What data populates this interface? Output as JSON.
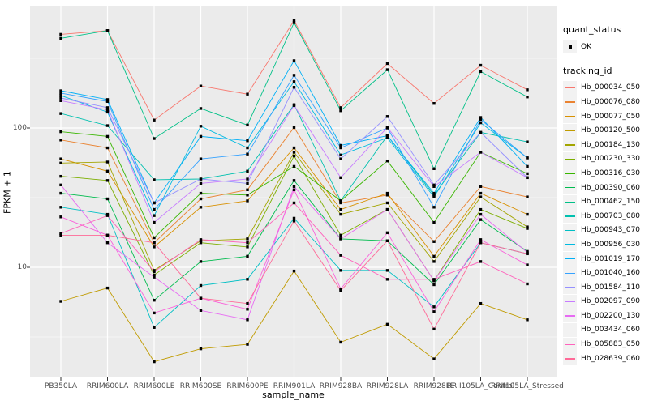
{
  "figure": {
    "y_axis": {
      "title": "FPKM + 1",
      "tick_labels": [
        "100",
        "10"
      ],
      "tick_values": [
        100,
        10
      ]
    },
    "x_axis": {
      "title": "sample_name"
    },
    "legend": {
      "quant_status_title": "quant_status",
      "quant_status_items": [
        "OK"
      ],
      "tracking_id_title": "tracking_id"
    },
    "style": {
      "panel_bg": "#EBEBEB",
      "grid_color": "#FFFFFF",
      "tick_text_color": "#4D4D4D",
      "point_color": "#000000",
      "legend_key_bg": "#F2F2F2"
    }
  },
  "chart_data": {
    "type": "line",
    "title": "",
    "xlabel": "sample_name",
    "ylabel": "FPKM + 1",
    "y_scale": "log10",
    "ylim": [
      1.7,
      750
    ],
    "y_major_ticks": [
      10,
      100
    ],
    "y_minor_gridlines": [
      3.162,
      31.62,
      316.2
    ],
    "grid": true,
    "legend_position": "right",
    "point_marker": {
      "shape": "square",
      "color": "#000000",
      "legend_label": "OK"
    },
    "categories": [
      "PB350LA",
      "RRIM600LA",
      "RRIM600LE",
      "RRIM600SE",
      "RRIM600PE",
      "RRIM901LA",
      "RRIM928BA",
      "RRIM928LA",
      "RRIM928LE",
      "RRII105LA_Control",
      "RRII105LA_Stressed"
    ],
    "series": [
      {
        "name": "Hb_000034_050",
        "color": "#F8766D",
        "values": [
          470,
          500,
          114,
          200,
          175,
          590,
          140,
          290,
          150,
          282,
          188
        ]
      },
      {
        "name": "Hb_000076_080",
        "color": "#EA8331",
        "values": [
          82,
          72,
          15,
          31,
          36,
          101,
          29,
          33,
          15.3,
          38,
          32
        ]
      },
      {
        "name": "Hb_000077_050",
        "color": "#D89000",
        "values": [
          60,
          49,
          14,
          27,
          30,
          72,
          26,
          34,
          12,
          34,
          24
        ]
      },
      {
        "name": "Hb_000120_500",
        "color": "#C09B00",
        "values": [
          5.7,
          7.1,
          2.1,
          2.6,
          2.8,
          9.4,
          2.9,
          3.9,
          2.2,
          5.5,
          4.2
        ]
      },
      {
        "name": "Hb_000184_130",
        "color": "#A3A500",
        "values": [
          56,
          57,
          9.5,
          15.5,
          16,
          67,
          24,
          29,
          11,
          32,
          19.5
        ]
      },
      {
        "name": "Hb_000230_330",
        "color": "#7CAE00",
        "values": [
          45,
          42,
          8.8,
          15,
          14,
          63,
          17,
          26,
          8,
          26,
          19
        ]
      },
      {
        "name": "Hb_000316_030",
        "color": "#39B600",
        "values": [
          94,
          87,
          16.3,
          34,
          33,
          53,
          30,
          58,
          21,
          67,
          47
        ]
      },
      {
        "name": "Hb_000390_060",
        "color": "#00BB4E",
        "values": [
          34,
          31,
          5.8,
          11,
          12,
          42,
          16,
          15.5,
          7.5,
          22,
          13
        ]
      },
      {
        "name": "Hb_000462_150",
        "color": "#00C087",
        "values": [
          440,
          500,
          84,
          138,
          105,
          570,
          133,
          262,
          51,
          254,
          167
        ]
      },
      {
        "name": "Hb_000703_080",
        "color": "#00C0AF",
        "values": [
          127,
          104,
          42.5,
          43,
          49,
          147,
          30,
          88,
          33,
          93,
          79.5
        ]
      },
      {
        "name": "Hb_000943_070",
        "color": "#00BFC4",
        "values": [
          27,
          24,
          3.7,
          7.4,
          8.2,
          22.5,
          9.5,
          9.5,
          5.2,
          15,
          12.5
        ]
      },
      {
        "name": "Hb_000956_030",
        "color": "#00BAE0",
        "values": [
          171,
          130,
          23.5,
          103,
          72,
          215,
          64,
          85,
          32,
          109,
          61
        ]
      },
      {
        "name": "Hb_001019_170",
        "color": "#00B0F6",
        "values": [
          185,
          160,
          29,
          87,
          81,
          304,
          75,
          88,
          34,
          119,
          53
        ]
      },
      {
        "name": "Hb_001040_160",
        "color": "#35A2FF",
        "values": [
          178,
          155,
          26,
          60,
          65,
          239,
          72,
          100,
          27,
          115,
          61
        ]
      },
      {
        "name": "Hb_001584_110",
        "color": "#9590FF",
        "values": [
          164,
          140,
          29,
          43,
          40,
          196,
          60,
          121,
          39,
          93,
          44
        ]
      },
      {
        "name": "Hb_002097_090",
        "color": "#C77CFF",
        "values": [
          157,
          135,
          21,
          40,
          43,
          145,
          44,
          101,
          38,
          67,
          44
        ]
      },
      {
        "name": "Hb_002200_130",
        "color": "#E76BF3",
        "values": [
          39,
          15,
          8.5,
          4.9,
          4.2,
          38,
          16,
          26,
          8,
          24,
          12.8
        ]
      },
      {
        "name": "Hb_003434_060",
        "color": "#FA62DB",
        "values": [
          23,
          17,
          4.7,
          6,
          5,
          36,
          7,
          17.7,
          4.8,
          15.8,
          10.4
        ]
      },
      {
        "name": "Hb_005883_050",
        "color": "#FF62BC",
        "values": [
          17.5,
          23.5,
          9.3,
          15.8,
          15,
          29,
          12.2,
          8.2,
          8.2,
          11,
          7.6
        ]
      },
      {
        "name": "Hb_028639_060",
        "color": "#FF6A98",
        "values": [
          17,
          17,
          15,
          6,
          5.5,
          21.5,
          6.8,
          15.5,
          3.6,
          15,
          12.5
        ]
      }
    ]
  }
}
